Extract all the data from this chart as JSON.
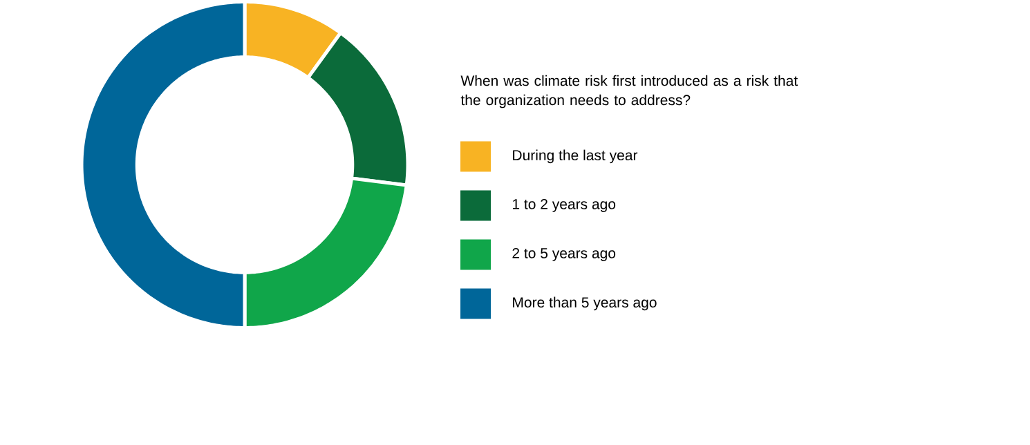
{
  "chart_data": {
    "type": "donut",
    "title": "When was climate risk first introduced as a risk that the organization needs to address?",
    "categories": [
      "During the last year",
      "1 to 2 years ago",
      "2 to 5 years ago",
      "More than 5 years ago"
    ],
    "values": [
      10,
      17,
      23,
      50
    ],
    "colors": [
      "#f8b323",
      "#0b6b3a",
      "#10a64a",
      "#006699"
    ],
    "legend": "right"
  }
}
